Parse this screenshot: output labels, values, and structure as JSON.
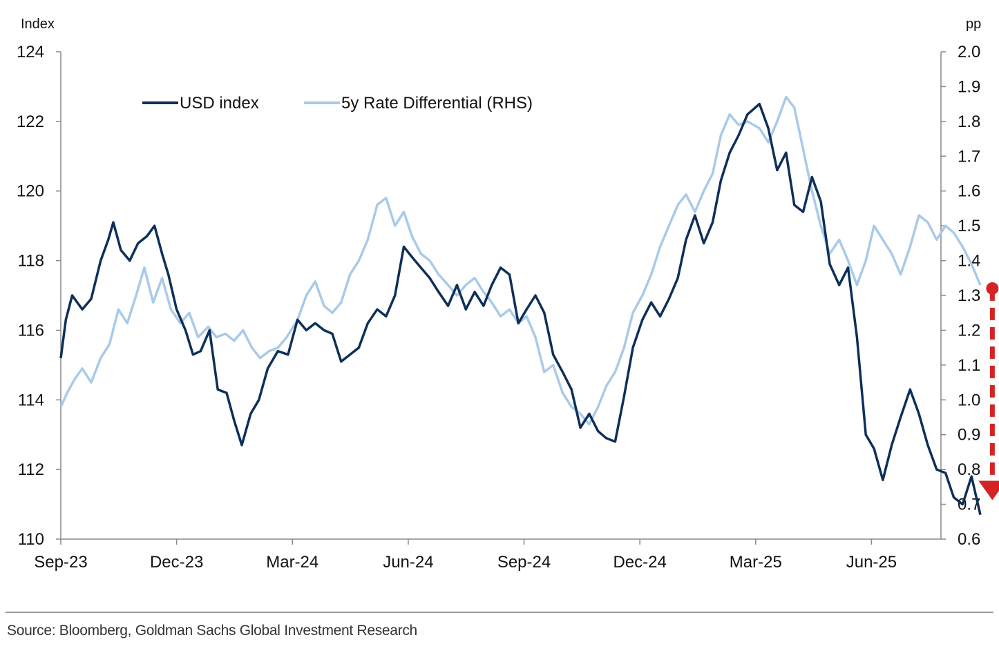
{
  "chart_data": {
    "type": "line",
    "left_axis_unit": "Index",
    "right_axis_unit": "pp",
    "source": "Source: Bloomberg, Goldman Sachs Global Investment Research",
    "x_tick_labels": [
      "Sep-23",
      "Dec-23",
      "Mar-24",
      "Jun-24",
      "Sep-24",
      "Dec-24",
      "Mar-25",
      "Jun-25"
    ],
    "x_range_months": [
      "2023-09",
      "2025-07"
    ],
    "ylim_left": [
      110,
      124
    ],
    "ylim_right": [
      0.6,
      2.0
    ],
    "yticks_left": [
      "124",
      "122",
      "120",
      "118",
      "116",
      "114",
      "112",
      "110"
    ],
    "yticks_right": [
      "2.0",
      "1.9",
      "1.8",
      "1.7",
      "1.6",
      "1.5",
      "1.4",
      "1.3",
      "1.2",
      "1.1",
      "1.0",
      "0.9",
      "0.8",
      "0.7",
      "0.6"
    ],
    "legend_position": "top-left",
    "series": [
      {
        "name": "USD index",
        "axis": "left",
        "color": "#0d2f5a",
        "points": [
          [
            "2023-09-01",
            115.2
          ],
          [
            "2023-09-05",
            116.3
          ],
          [
            "2023-09-10",
            117.0
          ],
          [
            "2023-09-18",
            116.6
          ],
          [
            "2023-09-25",
            116.9
          ],
          [
            "2023-10-02",
            118.0
          ],
          [
            "2023-10-08",
            118.6
          ],
          [
            "2023-10-12",
            119.1
          ],
          [
            "2023-10-18",
            118.3
          ],
          [
            "2023-10-25",
            118.0
          ],
          [
            "2023-11-01",
            118.5
          ],
          [
            "2023-11-08",
            118.7
          ],
          [
            "2023-11-14",
            119.0
          ],
          [
            "2023-11-20",
            118.2
          ],
          [
            "2023-11-25",
            117.6
          ],
          [
            "2023-12-01",
            116.6
          ],
          [
            "2023-12-08",
            116.0
          ],
          [
            "2023-12-14",
            115.3
          ],
          [
            "2023-12-20",
            115.4
          ],
          [
            "2023-12-27",
            116.0
          ],
          [
            "2024-01-03",
            114.3
          ],
          [
            "2024-01-10",
            114.2
          ],
          [
            "2024-01-16",
            113.4
          ],
          [
            "2024-01-22",
            112.7
          ],
          [
            "2024-01-29",
            113.6
          ],
          [
            "2024-02-05",
            114.0
          ],
          [
            "2024-02-12",
            114.9
          ],
          [
            "2024-02-20",
            115.4
          ],
          [
            "2024-02-28",
            115.3
          ],
          [
            "2024-03-05",
            116.3
          ],
          [
            "2024-03-12",
            116.0
          ],
          [
            "2024-03-19",
            116.2
          ],
          [
            "2024-03-26",
            116.0
          ],
          [
            "2024-04-02",
            115.9
          ],
          [
            "2024-04-09",
            115.1
          ],
          [
            "2024-04-16",
            115.3
          ],
          [
            "2024-04-23",
            115.5
          ],
          [
            "2024-04-30",
            116.2
          ],
          [
            "2024-05-07",
            116.6
          ],
          [
            "2024-05-14",
            116.4
          ],
          [
            "2024-05-21",
            117.0
          ],
          [
            "2024-05-28",
            118.4
          ],
          [
            "2024-06-04",
            118.1
          ],
          [
            "2024-06-11",
            117.8
          ],
          [
            "2024-06-18",
            117.5
          ],
          [
            "2024-06-25",
            117.1
          ],
          [
            "2024-07-02",
            116.7
          ],
          [
            "2024-07-09",
            117.3
          ],
          [
            "2024-07-16",
            116.6
          ],
          [
            "2024-07-23",
            117.1
          ],
          [
            "2024-07-30",
            116.7
          ],
          [
            "2024-08-06",
            117.3
          ],
          [
            "2024-08-13",
            117.8
          ],
          [
            "2024-08-20",
            117.6
          ],
          [
            "2024-08-27",
            116.2
          ],
          [
            "2024-09-03",
            116.6
          ],
          [
            "2024-09-10",
            117.0
          ],
          [
            "2024-09-17",
            116.5
          ],
          [
            "2024-09-24",
            115.3
          ],
          [
            "2024-10-01",
            114.8
          ],
          [
            "2024-10-08",
            114.3
          ],
          [
            "2024-10-15",
            113.2
          ],
          [
            "2024-10-22",
            113.6
          ],
          [
            "2024-10-29",
            113.1
          ],
          [
            "2024-11-05",
            112.9
          ],
          [
            "2024-11-12",
            112.8
          ],
          [
            "2024-11-19",
            114.1
          ],
          [
            "2024-11-26",
            115.5
          ],
          [
            "2024-12-03",
            116.3
          ],
          [
            "2024-12-10",
            116.8
          ],
          [
            "2024-12-17",
            116.4
          ],
          [
            "2024-12-24",
            116.9
          ],
          [
            "2024-12-31",
            117.5
          ],
          [
            "2025-01-07",
            118.6
          ],
          [
            "2025-01-14",
            119.3
          ],
          [
            "2025-01-21",
            118.5
          ],
          [
            "2025-01-28",
            119.1
          ],
          [
            "2025-02-04",
            120.3
          ],
          [
            "2025-02-11",
            121.1
          ],
          [
            "2025-02-18",
            121.6
          ],
          [
            "2025-02-25",
            122.2
          ],
          [
            "2025-03-04",
            122.5
          ],
          [
            "2025-03-11",
            121.8
          ],
          [
            "2025-03-18",
            120.6
          ],
          [
            "2025-03-25",
            121.1
          ],
          [
            "2025-04-01",
            119.6
          ],
          [
            "2025-04-08",
            119.4
          ],
          [
            "2025-04-15",
            120.4
          ],
          [
            "2025-04-22",
            119.7
          ],
          [
            "2025-04-29",
            117.9
          ],
          [
            "2025-05-06",
            117.3
          ],
          [
            "2025-05-13",
            117.8
          ],
          [
            "2025-05-20",
            115.8
          ],
          [
            "2025-05-27",
            113.0
          ],
          [
            "2025-06-03",
            112.6
          ],
          [
            "2025-06-10",
            111.7
          ],
          [
            "2025-06-17",
            112.7
          ],
          [
            "2025-06-24",
            113.5
          ],
          [
            "2025-07-01",
            114.3
          ],
          [
            "2025-07-08",
            113.6
          ],
          [
            "2025-07-15",
            112.7
          ],
          [
            "2025-07-22",
            112.0
          ],
          [
            "2025-07-29",
            111.9
          ],
          [
            "2025-08-05",
            111.2
          ],
          [
            "2025-08-12",
            111.0
          ],
          [
            "2025-08-19",
            111.8
          ],
          [
            "2025-08-26",
            110.7
          ]
        ]
      },
      {
        "name": "5y Rate Differential (RHS)",
        "axis": "right",
        "color": "#a9cae8",
        "points": [
          [
            "2023-09-01",
            0.98
          ],
          [
            "2023-09-06",
            1.02
          ],
          [
            "2023-09-12",
            1.06
          ],
          [
            "2023-09-18",
            1.09
          ],
          [
            "2023-09-25",
            1.05
          ],
          [
            "2023-10-02",
            1.12
          ],
          [
            "2023-10-09",
            1.16
          ],
          [
            "2023-10-16",
            1.26
          ],
          [
            "2023-10-23",
            1.22
          ],
          [
            "2023-10-30",
            1.3
          ],
          [
            "2023-11-06",
            1.38
          ],
          [
            "2023-11-13",
            1.28
          ],
          [
            "2023-11-20",
            1.35
          ],
          [
            "2023-11-27",
            1.26
          ],
          [
            "2023-12-04",
            1.22
          ],
          [
            "2023-12-11",
            1.25
          ],
          [
            "2023-12-18",
            1.18
          ],
          [
            "2023-12-26",
            1.21
          ],
          [
            "2024-01-02",
            1.18
          ],
          [
            "2024-01-09",
            1.19
          ],
          [
            "2024-01-16",
            1.17
          ],
          [
            "2024-01-23",
            1.2
          ],
          [
            "2024-01-30",
            1.15
          ],
          [
            "2024-02-06",
            1.12
          ],
          [
            "2024-02-13",
            1.14
          ],
          [
            "2024-02-20",
            1.15
          ],
          [
            "2024-02-27",
            1.18
          ],
          [
            "2024-03-05",
            1.23
          ],
          [
            "2024-03-12",
            1.3
          ],
          [
            "2024-03-19",
            1.34
          ],
          [
            "2024-03-26",
            1.27
          ],
          [
            "2024-04-02",
            1.25
          ],
          [
            "2024-04-09",
            1.28
          ],
          [
            "2024-04-16",
            1.36
          ],
          [
            "2024-04-23",
            1.4
          ],
          [
            "2024-04-30",
            1.46
          ],
          [
            "2024-05-07",
            1.56
          ],
          [
            "2024-05-14",
            1.58
          ],
          [
            "2024-05-21",
            1.5
          ],
          [
            "2024-05-28",
            1.54
          ],
          [
            "2024-06-04",
            1.47
          ],
          [
            "2024-06-11",
            1.42
          ],
          [
            "2024-06-18",
            1.4
          ],
          [
            "2024-06-25",
            1.36
          ],
          [
            "2024-07-02",
            1.33
          ],
          [
            "2024-07-09",
            1.3
          ],
          [
            "2024-07-16",
            1.33
          ],
          [
            "2024-07-23",
            1.35
          ],
          [
            "2024-07-30",
            1.31
          ],
          [
            "2024-08-06",
            1.28
          ],
          [
            "2024-08-13",
            1.24
          ],
          [
            "2024-08-20",
            1.26
          ],
          [
            "2024-08-27",
            1.22
          ],
          [
            "2024-09-03",
            1.24
          ],
          [
            "2024-09-10",
            1.18
          ],
          [
            "2024-09-17",
            1.08
          ],
          [
            "2024-09-24",
            1.1
          ],
          [
            "2024-10-01",
            1.02
          ],
          [
            "2024-10-08",
            0.98
          ],
          [
            "2024-10-15",
            0.96
          ],
          [
            "2024-10-22",
            0.93
          ],
          [
            "2024-10-29",
            0.98
          ],
          [
            "2024-11-05",
            1.04
          ],
          [
            "2024-11-12",
            1.08
          ],
          [
            "2024-11-19",
            1.15
          ],
          [
            "2024-11-26",
            1.25
          ],
          [
            "2024-12-03",
            1.3
          ],
          [
            "2024-12-10",
            1.36
          ],
          [
            "2024-12-17",
            1.44
          ],
          [
            "2024-12-24",
            1.5
          ],
          [
            "2024-12-31",
            1.56
          ],
          [
            "2025-01-07",
            1.59
          ],
          [
            "2025-01-14",
            1.54
          ],
          [
            "2025-01-21",
            1.6
          ],
          [
            "2025-01-28",
            1.65
          ],
          [
            "2025-02-04",
            1.76
          ],
          [
            "2025-02-11",
            1.82
          ],
          [
            "2025-02-18",
            1.79
          ],
          [
            "2025-02-25",
            1.8
          ],
          [
            "2025-03-04",
            1.78
          ],
          [
            "2025-03-11",
            1.74
          ],
          [
            "2025-03-18",
            1.8
          ],
          [
            "2025-03-25",
            1.87
          ],
          [
            "2025-04-01",
            1.84
          ],
          [
            "2025-04-08",
            1.72
          ],
          [
            "2025-04-15",
            1.6
          ],
          [
            "2025-04-22",
            1.5
          ],
          [
            "2025-04-29",
            1.42
          ],
          [
            "2025-05-06",
            1.46
          ],
          [
            "2025-05-13",
            1.4
          ],
          [
            "2025-05-20",
            1.33
          ],
          [
            "2025-05-27",
            1.4
          ],
          [
            "2025-06-03",
            1.5
          ],
          [
            "2025-06-10",
            1.46
          ],
          [
            "2025-06-17",
            1.42
          ],
          [
            "2025-06-24",
            1.36
          ],
          [
            "2025-07-01",
            1.44
          ],
          [
            "2025-07-08",
            1.53
          ],
          [
            "2025-07-15",
            1.51
          ],
          [
            "2025-07-22",
            1.46
          ],
          [
            "2025-07-29",
            1.5
          ],
          [
            "2025-08-05",
            1.48
          ],
          [
            "2025-08-12",
            1.44
          ],
          [
            "2025-08-19",
            1.39
          ],
          [
            "2025-08-26",
            1.33
          ]
        ]
      }
    ],
    "annotation": {
      "type": "arrow",
      "color": "#d42424",
      "style": "dashed",
      "description": "downward arrow",
      "from": [
        "2025-09-05",
        1.32
      ],
      "to": [
        "2025-09-05",
        0.72
      ]
    }
  }
}
